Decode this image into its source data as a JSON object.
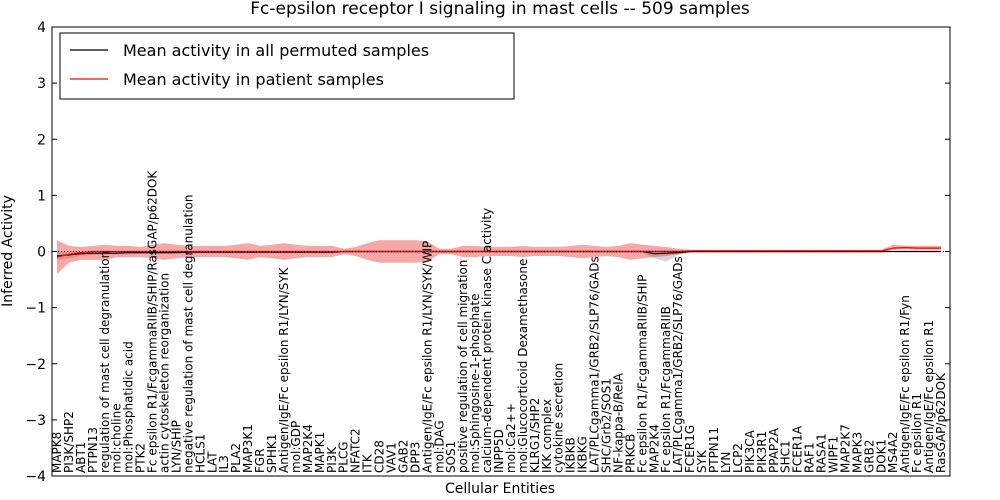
{
  "chart_data": {
    "type": "line",
    "title": "Fc-epsilon receptor I signaling in mast cells -- 509 samples",
    "xlabel": "Cellular Entities",
    "ylabel": "Inferred Activity",
    "ylim": [
      -4,
      4
    ],
    "yticks": [
      -4,
      -3,
      -2,
      -1,
      0,
      1,
      2,
      3,
      4
    ],
    "ytick_labels": [
      "−4",
      "−3",
      "−2",
      "−1",
      "0",
      "1",
      "2",
      "3",
      "4"
    ],
    "legend_position": "top-left",
    "categories": [
      "MAPK8",
      "PI3K/SHP2",
      "ABT1",
      "PTPN13",
      "regulation of mast cell degranulation",
      "mol:choline",
      "mol:Phosphatidic acid",
      "PTK2",
      "Fc epsilon R1/FcgammaRIIB/SHIP/RasGAP/p62DOK",
      "actin cytoskeleton reorganization",
      "LYN/SHIP",
      "negative regulation of mast cell degranulation",
      "HCLS1",
      "LAT",
      "IL3",
      "PLA2",
      "MAP3K1",
      "FGR",
      "SPHK1",
      "Antigen/IgE/Fc epsilon R1/LYN/SYK",
      "mol:GDP",
      "MAP2K4",
      "MAPK1",
      "PI3K",
      "PLCG",
      "NFATC2",
      "ITK",
      "CD28",
      "VAV1",
      "GAB2",
      "DPP3",
      "Antigen/IgE/Fc epsilon R1/LYN/SYK/WIP",
      "mol:DAG",
      "SOS1",
      "positive regulation of cell migration",
      "mol:Sphingosine-1-phosphate",
      "calcium-dependent protein kinase C activity",
      "INPP5D",
      "mol:Ca2++",
      "mol:Glucocorticoid Dexamethasone",
      "KLRG1/SHP2",
      "IKK complex",
      "cytokine secretion",
      "IKBKB",
      "IKBKG",
      "LAT/PLCgamma1/GRB2/SLP76/GADs",
      "SHC/Grb2/SOS1",
      "NF-kappa-B/RelA",
      "PRKCB",
      "Fc epsilon R1/FcgammaRIIB/SHIP",
      "MAP2K4",
      "Fc epsilon R1/FcgammaRIIB",
      "LAT/PLCgamma1/GRB2/SLP76/GADs",
      "FCER1G",
      "SYK",
      "PTPN11",
      "LYN",
      "LCP2",
      "PIK3CA",
      "PIK3R1",
      "PPAP2A",
      "SHC1",
      "FCER1A",
      "RAF1",
      "RASA1",
      "WIPF1",
      "MAP2K7",
      "MAPK3",
      "GRB2",
      "DOK1",
      "MS4A2",
      "Antigen/IgE/Fc epsilon R1/Fyn",
      "Fc epsilon R1",
      "Antigen/IgE/Fc epsilon R1",
      "RasGAP/p62DOK"
    ],
    "series": [
      {
        "name": "Mean activity in all permuted samples",
        "color": "#000000",
        "values": [
          -0.08,
          -0.06,
          -0.04,
          -0.03,
          -0.03,
          -0.03,
          -0.02,
          -0.02,
          -0.02,
          -0.02,
          -0.02,
          -0.01,
          -0.01,
          -0.01,
          -0.01,
          -0.01,
          -0.01,
          -0.01,
          -0.01,
          -0.01,
          -0.01,
          -0.01,
          -0.01,
          -0.01,
          0.0,
          0.0,
          0.0,
          0.0,
          0.0,
          0.0,
          0.0,
          0.0,
          0.0,
          0.0,
          0.0,
          0.0,
          0.0,
          0.0,
          0.0,
          0.0,
          0.0,
          0.0,
          0.0,
          0.0,
          0.0,
          0.0,
          0.0,
          0.0,
          0.0,
          0.0,
          -0.04,
          -0.03,
          -0.02,
          0.0,
          0.0,
          0.0,
          0.0,
          0.0,
          0.0,
          0.0,
          0.0,
          0.0,
          0.0,
          0.0,
          0.0,
          0.0,
          0.0,
          0.0,
          0.0,
          0.0,
          0.0,
          0.0,
          0.0,
          0.0,
          0.0
        ],
        "band_low": [
          -0.15,
          -0.12,
          -0.08,
          -0.06,
          -0.06,
          -0.05,
          -0.05,
          -0.04,
          -0.04,
          -0.04,
          -0.03,
          -0.03,
          -0.03,
          -0.03,
          -0.03,
          -0.03,
          -0.03,
          -0.03,
          -0.03,
          -0.03,
          -0.03,
          -0.03,
          -0.03,
          -0.03,
          -0.02,
          -0.02,
          -0.02,
          -0.02,
          -0.02,
          -0.02,
          -0.02,
          -0.02,
          -0.02,
          -0.02,
          -0.02,
          -0.02,
          -0.02,
          -0.02,
          -0.02,
          -0.02,
          -0.02,
          -0.02,
          -0.02,
          -0.02,
          -0.02,
          -0.02,
          -0.02,
          -0.02,
          -0.02,
          -0.02,
          -0.12,
          -0.18,
          -0.06,
          -0.01,
          -0.01,
          -0.01,
          -0.01,
          -0.01,
          -0.01,
          -0.01,
          -0.01,
          -0.01,
          -0.01,
          -0.01,
          -0.01,
          -0.01,
          -0.01,
          -0.01,
          -0.01,
          -0.01,
          -0.01,
          -0.01,
          -0.01,
          -0.01,
          -0.01
        ],
        "band_high": [
          0.0,
          0.0,
          0.0,
          0.0,
          0.0,
          0.0,
          0.01,
          0.01,
          0.01,
          0.01,
          0.01,
          0.01,
          0.01,
          0.01,
          0.01,
          0.01,
          0.01,
          0.01,
          0.01,
          0.01,
          0.01,
          0.01,
          0.01,
          0.01,
          0.02,
          0.02,
          0.02,
          0.02,
          0.02,
          0.02,
          0.02,
          0.02,
          0.02,
          0.02,
          0.02,
          0.02,
          0.02,
          0.02,
          0.02,
          0.02,
          0.02,
          0.02,
          0.02,
          0.02,
          0.02,
          0.02,
          0.02,
          0.02,
          0.02,
          0.02,
          0.03,
          0.03,
          0.02,
          0.01,
          0.01,
          0.01,
          0.01,
          0.01,
          0.01,
          0.01,
          0.01,
          0.01,
          0.01,
          0.01,
          0.01,
          0.01,
          0.01,
          0.01,
          0.01,
          0.01,
          0.01,
          0.01,
          0.01,
          0.01,
          0.01
        ]
      },
      {
        "name": "Mean activity in patient samples",
        "color": "#ff0000",
        "values": [
          -0.1,
          -0.05,
          -0.02,
          0.0,
          0.0,
          0.0,
          0.0,
          0.0,
          0.0,
          0.0,
          0.0,
          0.0,
          0.0,
          0.0,
          0.0,
          0.0,
          0.0,
          0.0,
          0.0,
          0.0,
          0.0,
          0.0,
          0.0,
          0.0,
          0.0,
          0.0,
          0.0,
          0.0,
          0.0,
          0.0,
          0.0,
          0.0,
          0.0,
          0.0,
          0.0,
          0.0,
          0.0,
          0.0,
          0.0,
          0.0,
          0.0,
          0.0,
          0.0,
          0.0,
          0.0,
          0.0,
          0.0,
          0.0,
          0.0,
          0.0,
          0.0,
          0.0,
          0.0,
          0.01,
          0.01,
          0.01,
          0.01,
          0.01,
          0.01,
          0.01,
          0.01,
          0.01,
          0.01,
          0.01,
          0.01,
          0.01,
          0.01,
          0.01,
          0.01,
          0.01,
          0.06,
          0.07,
          0.06,
          0.06,
          0.06
        ],
        "band_low": [
          -0.4,
          -0.2,
          -0.15,
          -0.15,
          -0.15,
          -0.1,
          -0.1,
          -0.1,
          -0.12,
          -0.15,
          -0.12,
          -0.1,
          -0.1,
          -0.1,
          -0.1,
          -0.12,
          -0.15,
          -0.1,
          -0.12,
          -0.15,
          -0.12,
          -0.1,
          -0.1,
          -0.1,
          -0.05,
          -0.08,
          -0.15,
          -0.2,
          -0.2,
          -0.2,
          -0.2,
          -0.18,
          -0.05,
          -0.05,
          -0.1,
          -0.1,
          -0.08,
          -0.08,
          -0.08,
          -0.1,
          -0.08,
          -0.08,
          -0.08,
          -0.1,
          -0.12,
          -0.1,
          -0.08,
          -0.1,
          -0.15,
          -0.12,
          -0.1,
          -0.08,
          -0.05,
          -0.02,
          -0.02,
          -0.02,
          -0.02,
          -0.02,
          -0.02,
          -0.02,
          -0.02,
          -0.02,
          -0.02,
          -0.02,
          -0.02,
          -0.02,
          -0.02,
          -0.02,
          -0.02,
          -0.02,
          0.03,
          0.04,
          0.03,
          0.03,
          0.03
        ],
        "band_high": [
          0.2,
          0.1,
          0.08,
          0.1,
          0.12,
          0.1,
          0.1,
          0.08,
          0.12,
          0.15,
          0.12,
          0.1,
          0.1,
          0.1,
          0.1,
          0.12,
          0.15,
          0.1,
          0.12,
          0.15,
          0.12,
          0.1,
          0.1,
          0.1,
          0.05,
          0.08,
          0.15,
          0.2,
          0.2,
          0.2,
          0.2,
          0.18,
          0.05,
          0.05,
          0.1,
          0.1,
          0.08,
          0.08,
          0.08,
          0.1,
          0.08,
          0.08,
          0.08,
          0.1,
          0.12,
          0.1,
          0.08,
          0.1,
          0.15,
          0.12,
          0.1,
          0.08,
          0.05,
          0.03,
          0.03,
          0.03,
          0.03,
          0.03,
          0.03,
          0.03,
          0.03,
          0.03,
          0.03,
          0.03,
          0.03,
          0.03,
          0.03,
          0.03,
          0.03,
          0.03,
          0.12,
          0.1,
          0.1,
          0.1,
          0.1
        ]
      }
    ]
  }
}
